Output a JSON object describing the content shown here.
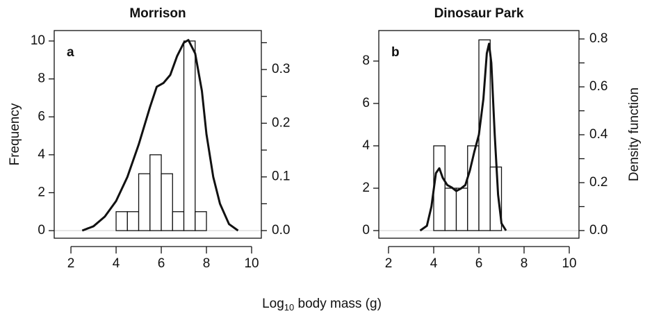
{
  "chart_data": [
    {
      "type": "histogram",
      "title": "Morrison",
      "panel_label": "a",
      "y_label": "Frequency",
      "bins": [
        4,
        4.5,
        5,
        5.5,
        6,
        6.5,
        7,
        7.5,
        8
      ],
      "values": [
        1,
        1,
        3,
        4,
        3,
        1,
        10,
        1
      ],
      "density": {
        "axis": "y2",
        "x": [
          2.5,
          3.0,
          3.5,
          4.0,
          4.5,
          5.0,
          5.5,
          5.8,
          6.1,
          6.4,
          6.7,
          7.0,
          7.2,
          7.5,
          7.8,
          8.0,
          8.3,
          8.6,
          9.0,
          9.4
        ],
        "values": [
          0,
          0.008,
          0.026,
          0.055,
          0.1,
          0.16,
          0.23,
          0.268,
          0.275,
          0.29,
          0.325,
          0.35,
          0.355,
          0.33,
          0.26,
          0.18,
          0.1,
          0.05,
          0.012,
          0
        ]
      },
      "xlim": [
        1.26,
        10.43
      ],
      "xticks": [
        2,
        4,
        6,
        8,
        10
      ],
      "ylim": [
        -0.4,
        10.55
      ],
      "yticks": [
        0,
        2,
        4,
        6,
        8,
        10
      ],
      "y2lim": [
        -0.0142,
        0.3726
      ],
      "y2ticks": [
        {
          "value": 0,
          "label": "0.0"
        },
        0.1,
        0.2,
        0.3
      ],
      "y2minor_ticks": [
        0.05,
        0.15,
        0.25,
        0.35
      ]
    },
    {
      "type": "histogram",
      "title": "Dinosaur Park",
      "panel_label": "b",
      "y2_label": "Density function",
      "bins": [
        4,
        4.5,
        5,
        5.5,
        6,
        6.5,
        7
      ],
      "values": [
        4,
        2,
        2,
        4,
        9,
        3
      ],
      "density": {
        "axis": "y2",
        "x": [
          3.4,
          3.7,
          3.9,
          4.1,
          4.25,
          4.4,
          4.6,
          4.8,
          5.0,
          5.2,
          5.4,
          5.6,
          5.8,
          6.0,
          6.2,
          6.35,
          6.45,
          6.55,
          6.7,
          6.85,
          7.0,
          7.2
        ],
        "values": [
          0,
          0.02,
          0.1,
          0.24,
          0.26,
          0.22,
          0.19,
          0.18,
          0.165,
          0.175,
          0.19,
          0.25,
          0.33,
          0.4,
          0.55,
          0.74,
          0.78,
          0.7,
          0.4,
          0.15,
          0.03,
          0
        ]
      },
      "xlim": [
        1.57,
        10.43
      ],
      "xticks": [
        2,
        4,
        6,
        8,
        10
      ],
      "ylim": [
        -0.36,
        9.44
      ],
      "yticks": [
        0,
        2,
        4,
        6,
        8
      ],
      "y2lim": [
        -0.032,
        0.835
      ],
      "y2ticks": [
        {
          "value": 0,
          "label": "0.0"
        },
        0.2,
        0.4,
        0.6,
        0.8
      ],
      "y2minor_ticks": [
        0.1,
        0.3,
        0.5,
        0.7
      ]
    }
  ],
  "x_label": {
    "base": "Log",
    "subscript": "10",
    "suffix": " body mass (g)"
  }
}
